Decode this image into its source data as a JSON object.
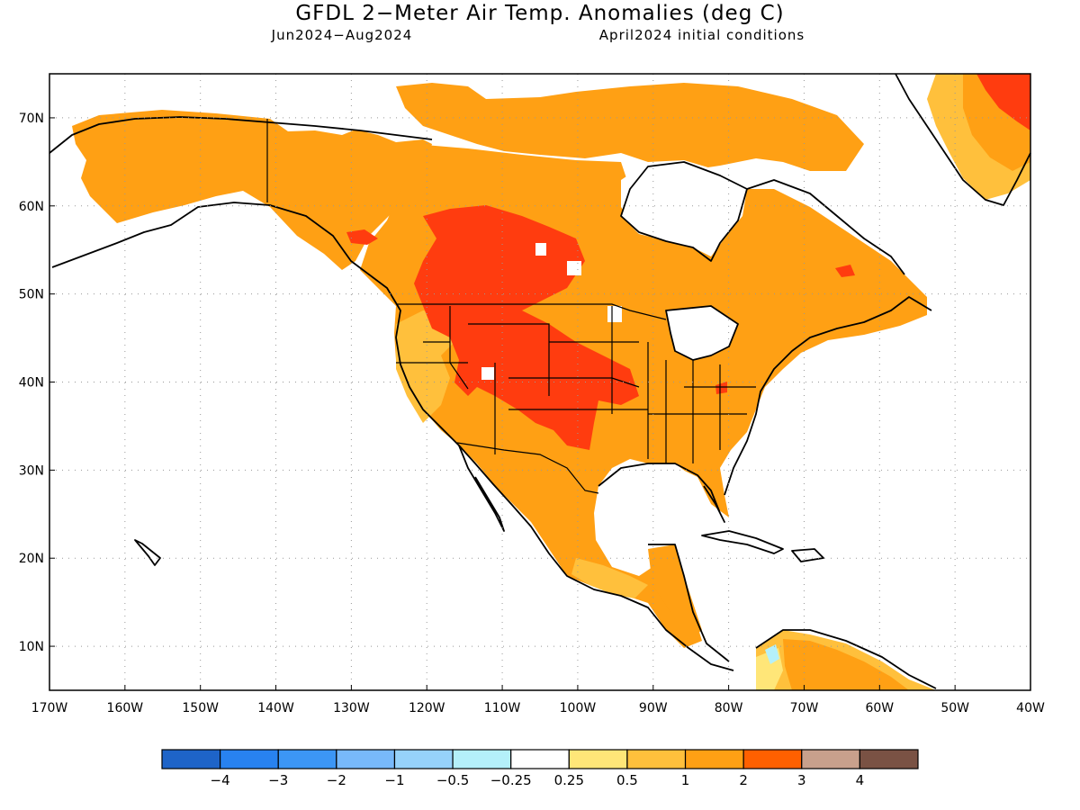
{
  "title": "GFDL 2−Meter Air Temp. Anomalies (deg C)",
  "subtitle_left": "Jun2024−Aug2024",
  "subtitle_right": "April2024 initial conditions",
  "lat_labels": [
    "70N",
    "60N",
    "50N",
    "40N",
    "30N",
    "20N",
    "10N"
  ],
  "lon_labels": [
    "170W",
    "160W",
    "150W",
    "140W",
    "130W",
    "120W",
    "110W",
    "100W",
    "90W",
    "80W",
    "70W",
    "60W",
    "50W",
    "40W"
  ],
  "colorbar": {
    "colors": [
      "#1e64c8",
      "#2882f0",
      "#3c96f5",
      "#78b9fa",
      "#96d2fa",
      "#b4f0fa",
      "#ffffff",
      "#ffe678",
      "#ffc03c",
      "#ffa014",
      "#ff6000",
      "#c8a08c",
      "#7a5244"
    ],
    "labels": [
      "−4",
      "−3",
      "−2",
      "−1",
      "−0.5",
      "−0.25",
      "0.25",
      "0.5",
      "1",
      "2",
      "3",
      "4"
    ]
  },
  "map": {
    "lat_range": [
      5,
      75
    ],
    "lon_range": [
      -170,
      -40
    ],
    "grid": "dotted",
    "fill_colors": {
      "orange": "#ffa014",
      "light_orange": "#ffc03c",
      "red": "#ff3c0f",
      "yellow": "#ffe678",
      "light_blue": "#b4f0fa",
      "blue": "#96d2fa"
    }
  }
}
